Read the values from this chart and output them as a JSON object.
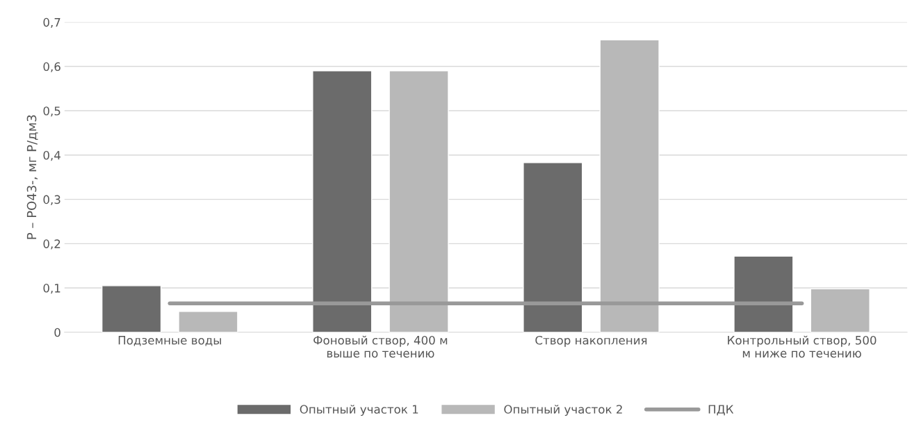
{
  "chart_data": {
    "type": "bar",
    "ylabel": "P – PO43-, мг P/дм3",
    "categories": [
      "Подземные воды",
      "Фоновый створ, 400 м\nвыше по течению",
      "Створ накопления",
      "Контрольный створ, 500\nм ниже по течению"
    ],
    "series": [
      {
        "name": "Опытный участок 1",
        "color": "#6b6b6b",
        "values": [
          0.105,
          0.59,
          0.383,
          0.172
        ]
      },
      {
        "name": "Опытный участок 2",
        "color": "#b8b8b8",
        "values": [
          0.047,
          0.59,
          0.66,
          0.098
        ]
      },
      {
        "name": "ПДК",
        "color": "#999999",
        "type": "line",
        "values": [
          0.065,
          0.065,
          0.065,
          0.065
        ]
      }
    ],
    "ylim": [
      0,
      0.7
    ],
    "yticks": [
      0,
      {
        "value": 0.1,
        "label": "0,1"
      },
      {
        "value": 0.2,
        "label": "0,2"
      },
      {
        "value": 0.3,
        "label": "0,3"
      },
      {
        "value": 0.4,
        "label": "0,4"
      },
      {
        "value": 0.5,
        "label": "0,5"
      },
      {
        "value": 0.6,
        "label": "0,6"
      },
      {
        "value": 0.7,
        "label": "0,7"
      }
    ],
    "grid": "y",
    "legend": "bottom"
  }
}
